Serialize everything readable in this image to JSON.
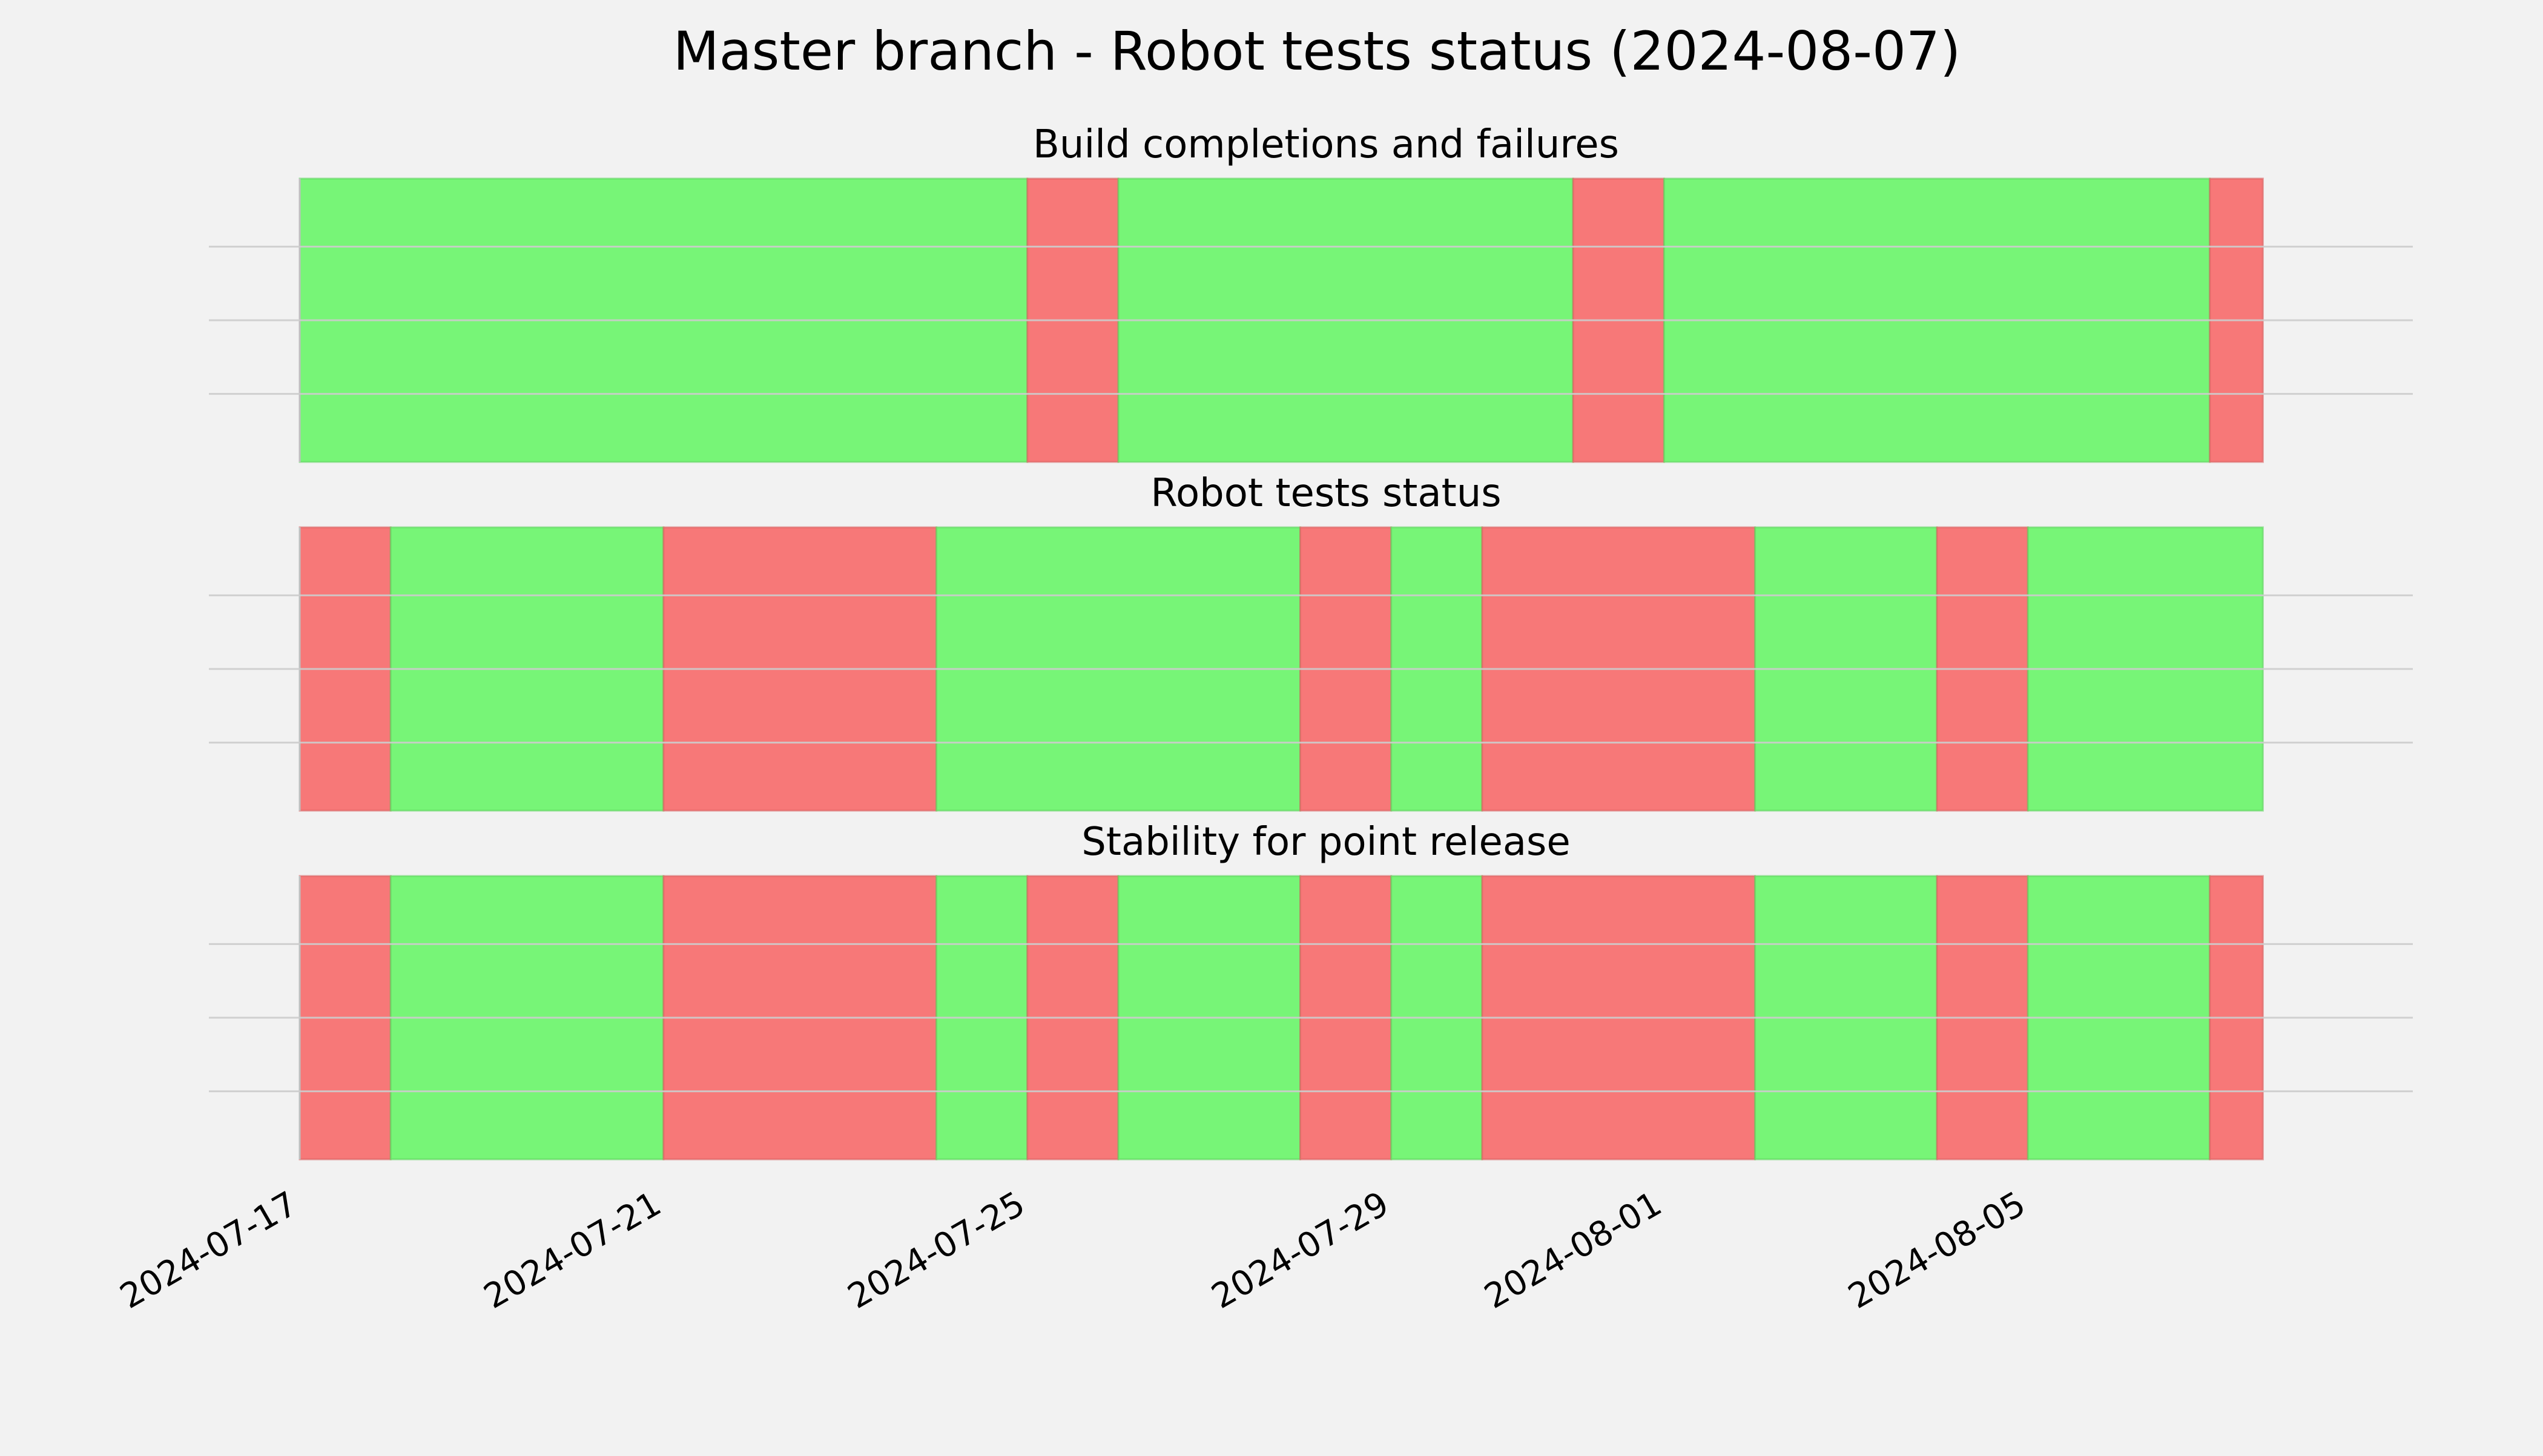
{
  "chart_data": {
    "type": "timeline-status",
    "title": "Master branch - Robot tests status (2024-08-07)",
    "x_axis": {
      "type": "date",
      "range": [
        "2024-07-17",
        "2024-08-08 04:00"
      ],
      "ticks": [
        "2024-07-17",
        "2024-07-21",
        "2024-07-25",
        "2024-07-29",
        "2024-08-01",
        "2024-08-05"
      ]
    },
    "grid": {
      "horizontal": true,
      "vertical": false,
      "color": "#cccccc"
    },
    "colors": {
      "pass": "#77f577",
      "fail": "#f77878",
      "background": "#f2f2f2"
    },
    "panels": [
      {
        "title": "Build completions and failures",
        "segments": [
          {
            "start": "2024-07-17 00:00",
            "end": "2024-07-25 00:00",
            "status": "pass"
          },
          {
            "start": "2024-07-25 00:00",
            "end": "2024-07-26 00:00",
            "status": "fail"
          },
          {
            "start": "2024-07-26 00:00",
            "end": "2024-07-31 00:00",
            "status": "pass"
          },
          {
            "start": "2024-07-31 00:00",
            "end": "2024-08-01 00:00",
            "status": "fail"
          },
          {
            "start": "2024-08-01 00:00",
            "end": "2024-08-07 00:00",
            "status": "pass"
          },
          {
            "start": "2024-08-07 00:00",
            "end": "2024-08-07 14:00",
            "status": "fail"
          }
        ]
      },
      {
        "title": "Robot tests status",
        "segments": [
          {
            "start": "2024-07-17 00:00",
            "end": "2024-07-18 00:00",
            "status": "fail"
          },
          {
            "start": "2024-07-18 00:00",
            "end": "2024-07-21 00:00",
            "status": "pass"
          },
          {
            "start": "2024-07-21 00:00",
            "end": "2024-07-24 00:00",
            "status": "fail"
          },
          {
            "start": "2024-07-24 00:00",
            "end": "2024-07-28 00:00",
            "status": "pass"
          },
          {
            "start": "2024-07-28 00:00",
            "end": "2024-07-29 00:00",
            "status": "fail"
          },
          {
            "start": "2024-07-29 00:00",
            "end": "2024-07-30 00:00",
            "status": "pass"
          },
          {
            "start": "2024-07-30 00:00",
            "end": "2024-08-02 00:00",
            "status": "fail"
          },
          {
            "start": "2024-08-02 00:00",
            "end": "2024-08-04 00:00",
            "status": "pass"
          },
          {
            "start": "2024-08-04 00:00",
            "end": "2024-08-05 00:00",
            "status": "fail"
          },
          {
            "start": "2024-08-05 00:00",
            "end": "2024-08-07 14:00",
            "status": "pass"
          }
        ]
      },
      {
        "title": "Stability for point release",
        "segments": [
          {
            "start": "2024-07-17 00:00",
            "end": "2024-07-18 00:00",
            "status": "fail"
          },
          {
            "start": "2024-07-18 00:00",
            "end": "2024-07-21 00:00",
            "status": "pass"
          },
          {
            "start": "2024-07-21 00:00",
            "end": "2024-07-24 00:00",
            "status": "fail"
          },
          {
            "start": "2024-07-24 00:00",
            "end": "2024-07-25 00:00",
            "status": "pass"
          },
          {
            "start": "2024-07-25 00:00",
            "end": "2024-07-26 00:00",
            "status": "fail"
          },
          {
            "start": "2024-07-26 00:00",
            "end": "2024-07-28 00:00",
            "status": "pass"
          },
          {
            "start": "2024-07-28 00:00",
            "end": "2024-07-29 00:00",
            "status": "fail"
          },
          {
            "start": "2024-07-29 00:00",
            "end": "2024-07-30 00:00",
            "status": "pass"
          },
          {
            "start": "2024-07-30 00:00",
            "end": "2024-08-02 00:00",
            "status": "fail"
          },
          {
            "start": "2024-08-02 00:00",
            "end": "2024-08-04 00:00",
            "status": "pass"
          },
          {
            "start": "2024-08-04 00:00",
            "end": "2024-08-05 00:00",
            "status": "fail"
          },
          {
            "start": "2024-08-05 00:00",
            "end": "2024-08-07 00:00",
            "status": "pass"
          },
          {
            "start": "2024-08-07 00:00",
            "end": "2024-08-07 14:00",
            "status": "fail"
          }
        ]
      }
    ]
  }
}
